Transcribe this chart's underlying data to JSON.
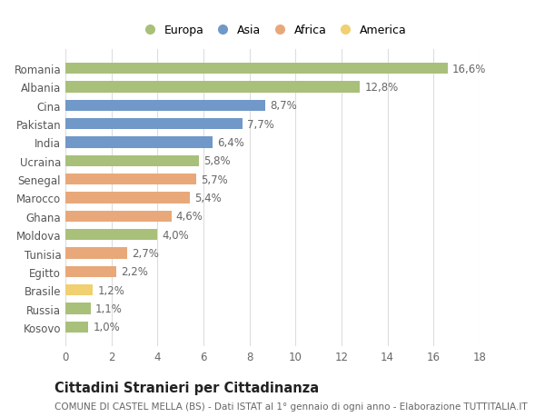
{
  "countries": [
    "Romania",
    "Albania",
    "Cina",
    "Pakistan",
    "India",
    "Ucraina",
    "Senegal",
    "Marocco",
    "Ghana",
    "Moldova",
    "Tunisia",
    "Egitto",
    "Brasile",
    "Russia",
    "Kosovo"
  ],
  "values": [
    16.6,
    12.8,
    8.7,
    7.7,
    6.4,
    5.8,
    5.7,
    5.4,
    4.6,
    4.0,
    2.7,
    2.2,
    1.2,
    1.1,
    1.0
  ],
  "continents": [
    "Europa",
    "Europa",
    "Asia",
    "Asia",
    "Asia",
    "Europa",
    "Africa",
    "Africa",
    "Africa",
    "Europa",
    "Africa",
    "Africa",
    "America",
    "Europa",
    "Europa"
  ],
  "colors": {
    "Europa": "#a8c07a",
    "Asia": "#7098c8",
    "Africa": "#e8a87a",
    "America": "#f0d070"
  },
  "legend_order": [
    "Europa",
    "Asia",
    "Africa",
    "America"
  ],
  "xlim": [
    0,
    18
  ],
  "xticks": [
    0,
    2,
    4,
    6,
    8,
    10,
    12,
    14,
    16,
    18
  ],
  "title": "Cittadini Stranieri per Cittadinanza",
  "subtitle": "COMUNE DI CASTEL MELLA (BS) - Dati ISTAT al 1° gennaio di ogni anno - Elaborazione TUTTITALIA.IT",
  "background_color": "#ffffff",
  "bar_height": 0.6,
  "grid_color": "#dddddd",
  "label_fontsize": 8.5,
  "tick_fontsize": 8.5,
  "title_fontsize": 10.5,
  "subtitle_fontsize": 7.5
}
